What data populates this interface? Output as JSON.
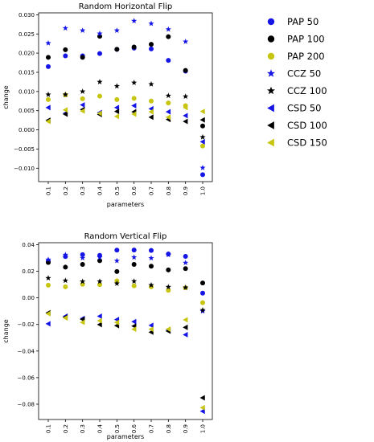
{
  "chart_data": [
    {
      "type": "scatter",
      "title": "Random Horizontal Flip",
      "xlabel": "parameters",
      "ylabel": "change",
      "categories": [
        "0.1",
        "0.2",
        "0.3",
        "0.4",
        "0.5",
        "0.6",
        "0.7",
        "0.8",
        "0.9",
        "1.0"
      ],
      "x_tick_rotation": 90,
      "ylim": [
        -0.0135,
        0.0305
      ],
      "yticks": [
        -0.01,
        -0.005,
        0.0,
        0.005,
        0.01,
        0.015,
        0.02,
        0.025,
        0.03
      ],
      "ytick_labels": [
        "−0.010",
        "−0.005",
        "0.000",
        "0.005",
        "0.010",
        "0.015",
        "0.020",
        "0.025",
        "0.030"
      ],
      "grid": false,
      "series": [
        {
          "name": "PAP 50",
          "color": "#1515e6",
          "marker": "circle",
          "values": [
            0.0165,
            0.0193,
            0.0193,
            0.0199,
            0.021,
            0.0213,
            0.0211,
            0.0181,
            0.0153,
            -0.0117
          ]
        },
        {
          "name": "PAP 100",
          "color": "#000000",
          "marker": "circle",
          "values": [
            0.0189,
            0.0209,
            0.0189,
            0.0244,
            0.021,
            0.0216,
            0.0223,
            0.0243,
            0.0155,
            0.001
          ]
        },
        {
          "name": "PAP 200",
          "color": "#c7c510",
          "marker": "circle",
          "values": [
            0.0079,
            0.0091,
            0.0081,
            0.0088,
            0.0079,
            0.0082,
            0.0075,
            0.007,
            0.0063,
            -0.0042
          ]
        },
        {
          "name": "CCZ 50",
          "color": "#1515e6",
          "marker": "star",
          "values": [
            0.0226,
            0.0265,
            0.0259,
            0.0251,
            0.0259,
            0.0284,
            0.0277,
            0.0262,
            0.023,
            -0.0099
          ]
        },
        {
          "name": "CCZ 100",
          "color": "#000000",
          "marker": "star",
          "values": [
            0.0092,
            0.0092,
            0.01,
            0.0125,
            0.0114,
            0.0123,
            0.0119,
            0.0089,
            0.0087,
            -0.0019
          ]
        },
        {
          "name": "CSD 50",
          "color": "#1515e6",
          "marker": "triangle",
          "values": [
            0.0058,
            0.0043,
            0.0065,
            0.0045,
            0.0058,
            0.0063,
            0.0055,
            0.0047,
            0.0037,
            -0.0031
          ]
        },
        {
          "name": "CSD 100",
          "color": "#000000",
          "marker": "triangle",
          "values": [
            0.0025,
            0.0041,
            0.0053,
            0.004,
            0.0048,
            0.0047,
            0.0033,
            0.0027,
            0.0022,
            0.0026
          ]
        },
        {
          "name": "CSD 150",
          "color": "#c7c510",
          "marker": "triangle",
          "values": [
            0.0022,
            0.0052,
            0.0049,
            0.0043,
            0.0035,
            0.0041,
            0.0047,
            0.0033,
            0.0058,
            0.0048
          ]
        }
      ]
    },
    {
      "type": "scatter",
      "title": "Random Vertical Flip",
      "xlabel": "parameters",
      "ylabel": "change",
      "categories": [
        "0.1",
        "0.2",
        "0.3",
        "0.4",
        "0.5",
        "0.6",
        "0.7",
        "0.8",
        "0.9",
        "1.0"
      ],
      "x_tick_rotation": 90,
      "ylim": [
        -0.0915,
        0.0415
      ],
      "yticks": [
        -0.08,
        -0.06,
        -0.04,
        -0.02,
        0.0,
        0.02,
        0.04
      ],
      "ytick_labels": [
        "−0.08",
        "−0.06",
        "−0.04",
        "−0.02",
        "0.00",
        "0.02",
        "0.04"
      ],
      "grid": false,
      "series": [
        {
          "name": "PAP 50",
          "color": "#1515e6",
          "marker": "circle",
          "values": [
            0.0277,
            0.0311,
            0.0325,
            0.032,
            0.0359,
            0.036,
            0.0357,
            0.033,
            0.0312,
            0.0036
          ]
        },
        {
          "name": "PAP 100",
          "color": "#000000",
          "marker": "circle",
          "values": [
            0.0266,
            0.0231,
            0.0252,
            0.028,
            0.0198,
            0.0252,
            0.0238,
            0.021,
            0.022,
            0.0112
          ]
        },
        {
          "name": "PAP 200",
          "color": "#c7c510",
          "marker": "circle",
          "values": [
            0.0095,
            0.0083,
            0.0102,
            0.0099,
            0.0128,
            0.0091,
            0.0083,
            0.0057,
            0.0076,
            -0.0036
          ]
        },
        {
          "name": "CCZ 50",
          "color": "#1515e6",
          "marker": "star",
          "values": [
            0.0288,
            0.0324,
            0.03,
            0.0304,
            0.0279,
            0.0305,
            0.0299,
            0.0323,
            0.0264,
            -0.01
          ]
        },
        {
          "name": "CCZ 100",
          "color": "#000000",
          "marker": "star",
          "values": [
            0.0149,
            0.013,
            0.0123,
            0.0124,
            0.0108,
            0.0125,
            0.0096,
            0.0082,
            0.0078,
            -0.0092
          ]
        },
        {
          "name": "CSD 50",
          "color": "#1515e6",
          "marker": "triangle",
          "values": [
            -0.0195,
            -0.0138,
            -0.0155,
            -0.0138,
            -0.0163,
            -0.0179,
            -0.0207,
            -0.0244,
            -0.0277,
            -0.0853
          ]
        },
        {
          "name": "CSD 100",
          "color": "#000000",
          "marker": "triangle",
          "values": [
            -0.0112,
            -0.0146,
            -0.0161,
            -0.0201,
            -0.0209,
            -0.0212,
            -0.0258,
            -0.025,
            -0.0222,
            -0.0752
          ]
        },
        {
          "name": "CSD 150",
          "color": "#c7c510",
          "marker": "triangle",
          "values": [
            -0.0119,
            -0.0151,
            -0.0184,
            -0.0172,
            -0.0185,
            -0.0236,
            -0.0236,
            -0.0235,
            -0.0165,
            -0.0826
          ]
        }
      ]
    }
  ],
  "legend": {
    "placement": "right",
    "entries": [
      {
        "label": "PAP 50",
        "color": "#1515e6",
        "marker": "circle"
      },
      {
        "label": "PAP 100",
        "color": "#000000",
        "marker": "circle"
      },
      {
        "label": "PAP 200",
        "color": "#c7c510",
        "marker": "circle"
      },
      {
        "label": "CCZ 50",
        "color": "#1515e6",
        "marker": "star"
      },
      {
        "label": "CCZ 100",
        "color": "#000000",
        "marker": "star"
      },
      {
        "label": "CSD 50",
        "color": "#1515e6",
        "marker": "triangle"
      },
      {
        "label": "CSD 100",
        "color": "#000000",
        "marker": "triangle"
      },
      {
        "label": "CSD 150",
        "color": "#c7c510",
        "marker": "triangle"
      }
    ]
  }
}
